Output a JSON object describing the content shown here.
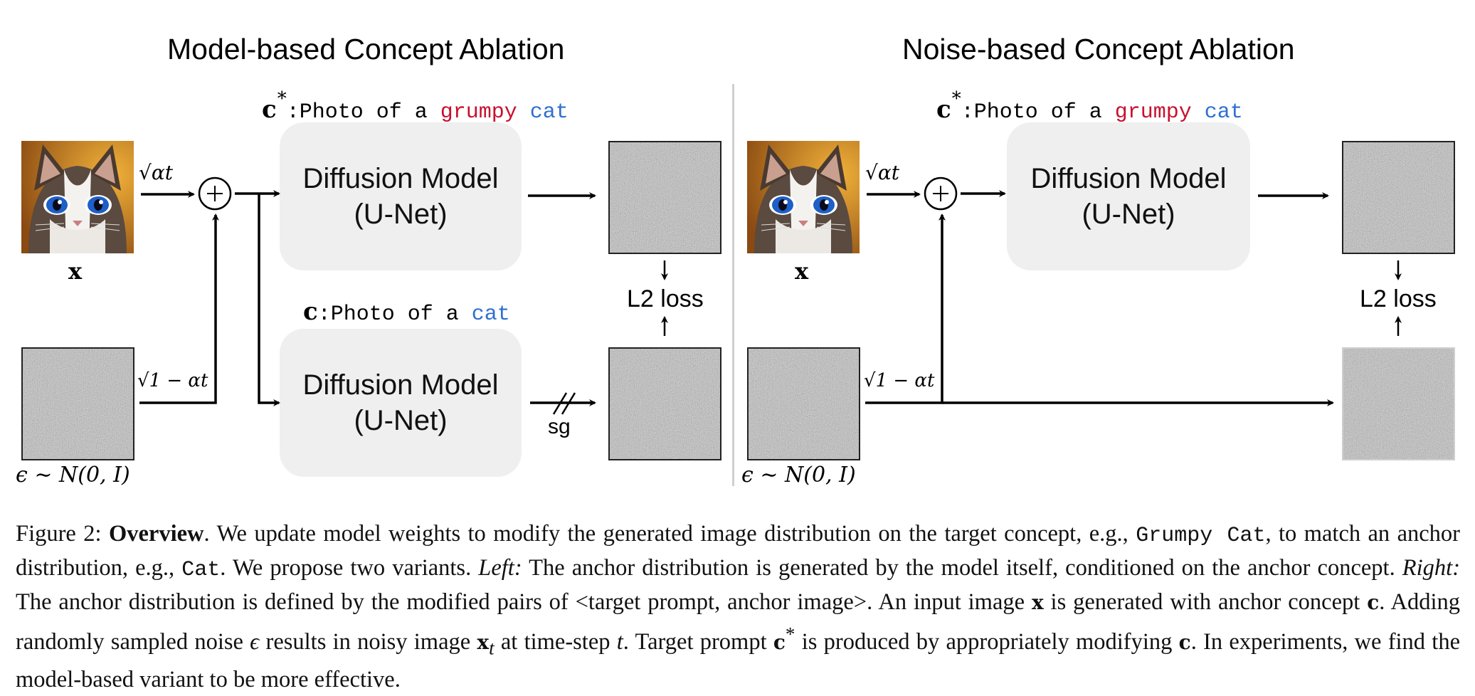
{
  "left_panel": {
    "title": "Model-based Concept Ablation",
    "top_prompt": {
      "symbol": "c",
      "star": "*",
      "prefix": ":Photo of a ",
      "target_word": "grumpy",
      "anchor_word": "cat"
    },
    "bottom_prompt": {
      "symbol": "c",
      "prefix": ":Photo of a ",
      "anchor_word": "cat"
    },
    "model_box_line1": "Diffusion Model",
    "model_box_line2": "(U-Net)",
    "image_label": "x",
    "noise_label": "ϵ ∼ N(0, I)",
    "alpha_label": "√αt",
    "one_minus_alpha_label": "√1 − αt",
    "loss_label": "L2 loss",
    "sg_label": "sg"
  },
  "right_panel": {
    "title": "Noise-based Concept Ablation",
    "top_prompt": {
      "symbol": "c",
      "star": "*",
      "prefix": ":Photo of a ",
      "target_word": "grumpy",
      "anchor_word": "cat"
    },
    "model_box_line1": "Diffusion Model",
    "model_box_line2": "(U-Net)",
    "image_label": "x",
    "noise_label": "ϵ ∼ N(0, I)",
    "alpha_label": "√αt",
    "one_minus_alpha_label": "√1 − αt",
    "loss_label": "L2 loss"
  },
  "colors": {
    "target_word": "#c8102e",
    "anchor_word": "#2f6fd0",
    "box_fill": "#efefef"
  },
  "caption": {
    "figure_label": "Figure 2:",
    "bold_title": "Overview",
    "s1": ". We update model weights to modify the generated image distribution on the target concept, e.g., ",
    "target_concept": "Grumpy Cat",
    "s2": ", to match an anchor distribution, e.g., ",
    "anchor_concept": "Cat",
    "s3": ". We propose two variants. ",
    "left_label": "Left:",
    "s4": " The anchor distribution is generated by the model itself, conditioned on the anchor concept. ",
    "right_label": "Right:",
    "s5": " The anchor distribution is defined by the modified pairs of <target prompt, anchor image>. An input image ",
    "x_symbol": "x",
    "s6": " is generated with anchor concept ",
    "c_symbol": "c",
    "s7": ". Adding randomly sampled noise ",
    "eps_symbol": "ϵ",
    "s8": " results in noisy image ",
    "xt_symbol": "x",
    "t_sub": "t",
    "s9": " at time-step ",
    "t_symbol": "t",
    "s10": ". Target prompt ",
    "cstar_symbol": "c",
    "star": "*",
    "s11": " is produced by appropriately modifying ",
    "c_symbol2": "c",
    "s12": ". In experiments, we find the model-based variant to be more effective."
  }
}
